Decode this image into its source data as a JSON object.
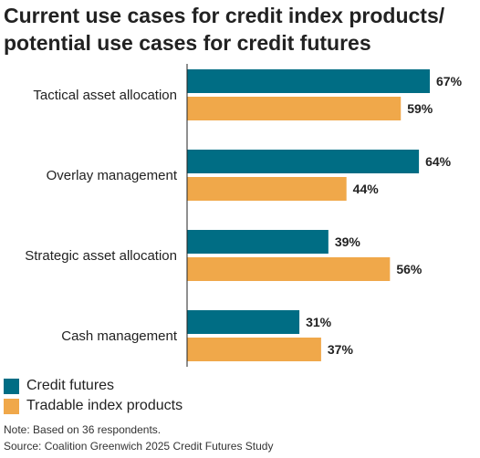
{
  "title_lines": [
    "Current use cases for credit index products/",
    "potential use cases for credit futures"
  ],
  "colors": {
    "credit_futures": "#006d84",
    "tradable_index": "#f0a84a",
    "axis": "#222222"
  },
  "legend": {
    "credit_futures": "Credit futures",
    "tradable_index": "Tradable index products"
  },
  "footer": {
    "note": "Note: Based on 36 respondents.",
    "source": "Source: Coalition Greenwich 2025 Credit Futures Study"
  },
  "chart_data": {
    "type": "bar",
    "orientation": "horizontal",
    "title": "Current use cases for credit index products/ potential use cases for credit futures",
    "categories": [
      "Tactical asset allocation",
      "Overlay management",
      "Strategic asset allocation",
      "Cash management"
    ],
    "series": [
      {
        "name": "Credit futures",
        "values": [
          67,
          64,
          39,
          31
        ]
      },
      {
        "name": "Tradable index products",
        "values": [
          59,
          44,
          56,
          37
        ]
      }
    ],
    "value_suffix": "%",
    "xlim": [
      0,
      67
    ],
    "grid": false,
    "legend_position": "bottom-left"
  }
}
